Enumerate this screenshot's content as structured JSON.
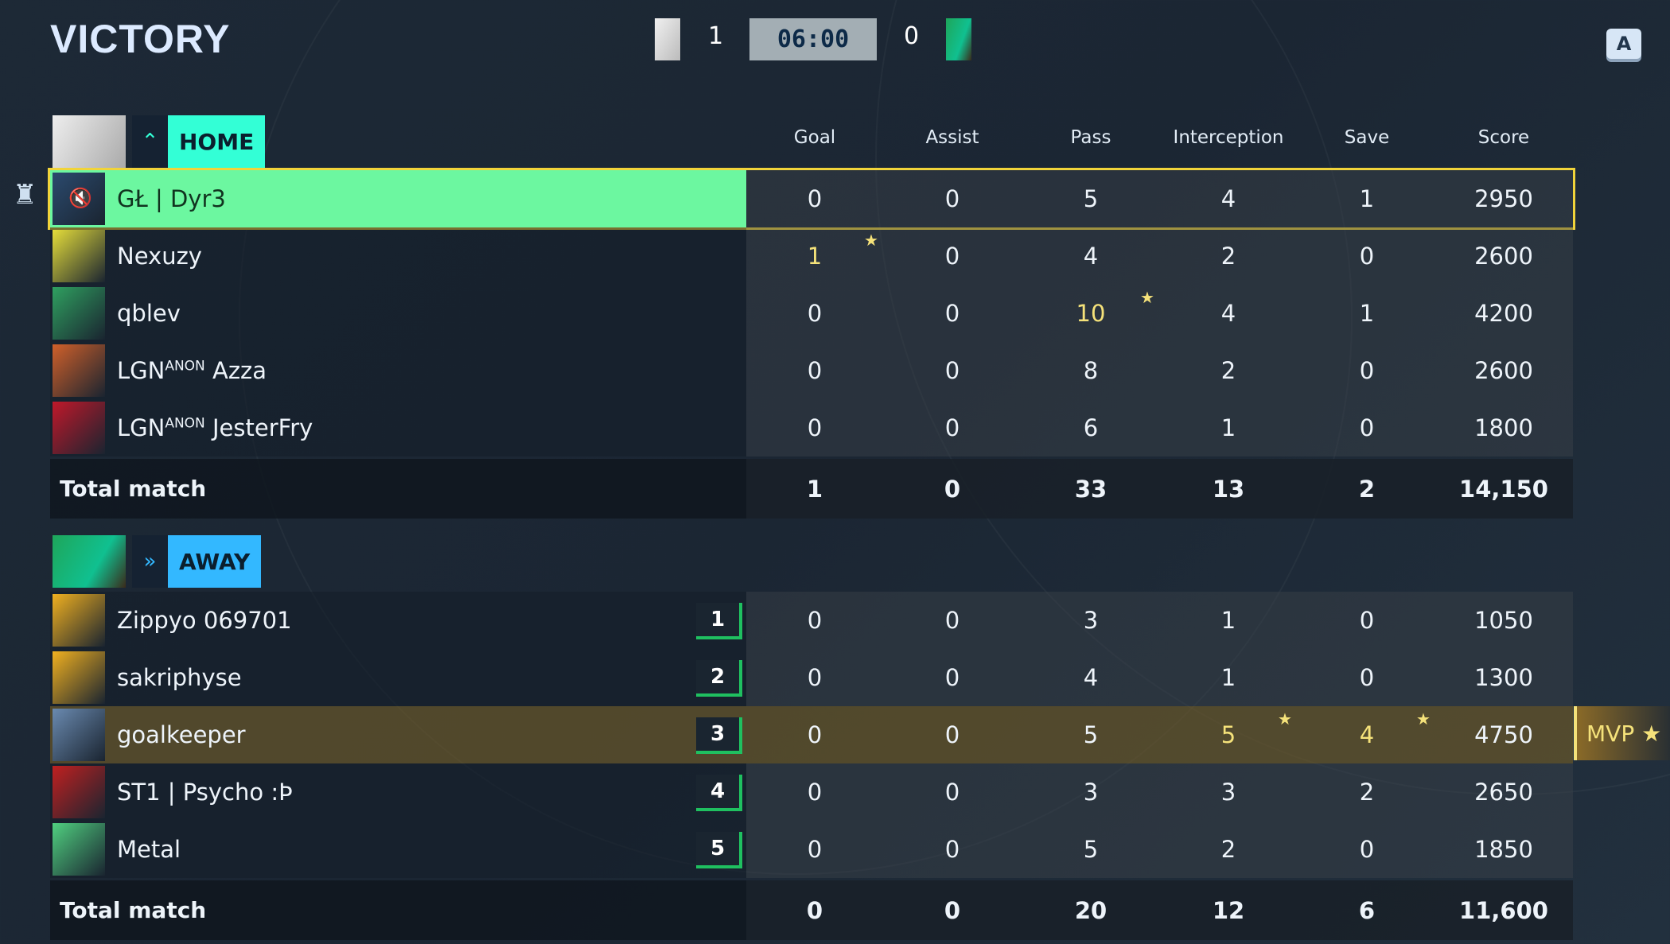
{
  "header": {
    "result": "VICTORY",
    "home_score": "1",
    "away_score": "0",
    "timer": "06:00",
    "key_hint": "A"
  },
  "columns": [
    "Goal",
    "Assist",
    "Pass",
    "Interception",
    "Save",
    "Score"
  ],
  "home": {
    "label": "HOME",
    "color": "#33ffd6",
    "players": [
      {
        "name": "GŁ | Dyr3",
        "stats": [
          "0",
          "0",
          "5",
          "4",
          "1",
          "2950"
        ],
        "highlights": [],
        "self": true,
        "muted": true,
        "avatar": "#2b4a6e"
      },
      {
        "name": "Nexuzy",
        "stats": [
          "1",
          "0",
          "4",
          "2",
          "0",
          "2600"
        ],
        "highlights": [
          0
        ],
        "avatar": "#e5dd3a"
      },
      {
        "name": "qblev",
        "stats": [
          "0",
          "0",
          "10",
          "4",
          "1",
          "4200"
        ],
        "highlights": [
          2
        ],
        "avatar": "#2fa060"
      },
      {
        "name": "LGN",
        "tag": "ANON",
        "suffix": " Azza",
        "stats": [
          "0",
          "0",
          "8",
          "2",
          "0",
          "2600"
        ],
        "highlights": [],
        "avatar": "#d0602a"
      },
      {
        "name": "LGN",
        "tag": "ANON",
        "suffix": " JesterFry",
        "stats": [
          "0",
          "0",
          "6",
          "1",
          "0",
          "1800"
        ],
        "highlights": [],
        "avatar": "#c0182a"
      }
    ],
    "total_label": "Total match",
    "totals": [
      "1",
      "0",
      "33",
      "13",
      "2",
      "14,150"
    ]
  },
  "away": {
    "label": "AWAY",
    "color": "#33b8ff",
    "players": [
      {
        "name": "Zippyo 069701",
        "rank": "1",
        "stats": [
          "0",
          "0",
          "3",
          "1",
          "0",
          "1050"
        ],
        "highlights": [],
        "avatar": "#f0b020"
      },
      {
        "name": "sakriphyse",
        "rank": "2",
        "stats": [
          "0",
          "0",
          "4",
          "1",
          "0",
          "1300"
        ],
        "highlights": [],
        "avatar": "#f0b020"
      },
      {
        "name": "goalkeeper",
        "rank": "3",
        "stats": [
          "0",
          "0",
          "5",
          "5",
          "4",
          "4750"
        ],
        "highlights": [
          3,
          4
        ],
        "mvp": true,
        "avatar": "#6a8ab0"
      },
      {
        "name": "ST1 | Psycho :Þ",
        "rank": "4",
        "stats": [
          "0",
          "0",
          "3",
          "3",
          "2",
          "2650"
        ],
        "highlights": [],
        "avatar": "#c02020"
      },
      {
        "name": "Metal",
        "rank": "5",
        "stats": [
          "0",
          "0",
          "5",
          "2",
          "0",
          "1850"
        ],
        "highlights": [],
        "avatar": "#50d080"
      }
    ],
    "total_label": "Total match",
    "totals": [
      "0",
      "0",
      "20",
      "12",
      "6",
      "11,600"
    ]
  },
  "mvp_label": "MVP"
}
